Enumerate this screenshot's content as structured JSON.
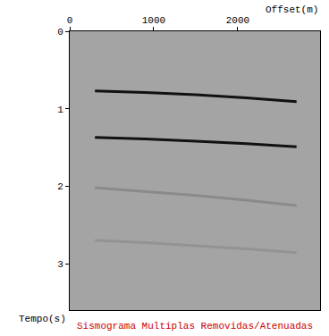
{
  "chart_data": {
    "type": "line",
    "title": "Sismograma Multiplas Removidas/Atenuadas",
    "x_label": "Offset(m)",
    "y_label": "Tempo(s)",
    "x": [
      300,
      900,
      1500,
      2100,
      2700
    ],
    "series": [
      {
        "color": "#111111",
        "values": [
          0.77,
          0.79,
          0.82,
          0.86,
          0.91
        ]
      },
      {
        "color": "#111111",
        "values": [
          1.37,
          1.39,
          1.42,
          1.45,
          1.49
        ]
      },
      {
        "color": "#8a8a8a",
        "values": [
          2.02,
          2.07,
          2.12,
          2.18,
          2.25
        ]
      },
      {
        "color": "#939393",
        "values": [
          2.7,
          2.73,
          2.77,
          2.81,
          2.86
        ]
      }
    ],
    "xlim": [
      0,
      2980
    ],
    "ylim": [
      3.6,
      0
    ],
    "xticks": [
      0,
      1000,
      2000
    ],
    "yticks": [
      0,
      1,
      2,
      3
    ],
    "grid": false
  }
}
